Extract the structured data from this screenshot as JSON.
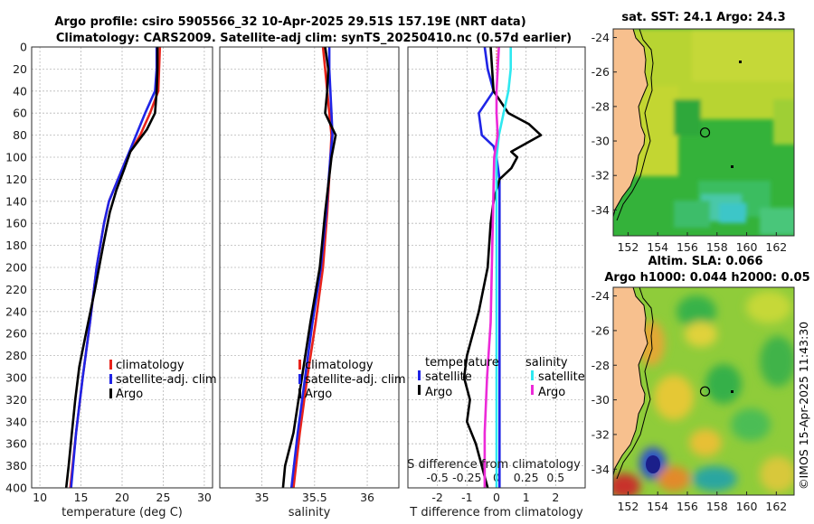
{
  "titles": {
    "line1": "Argo profile: csiro 5905566_32 10-Apr-2025 29.51S 157.19E (NRT data)",
    "line2": "Climatology: CARS2009. Satellite-adj clim: synTS_20250410.nc (0.57d earlier)"
  },
  "colors": {
    "climatology": "#e8231b",
    "satellite": "#1f24e6",
    "argo": "#000000",
    "sal_satellite": "#2ee8f0",
    "sal_argo": "#ec2ad8",
    "grid": "#b8b8b8",
    "land": "#f7c08e"
  },
  "stamp": "©IMOS 15-Apr-2025 11:43:30",
  "chart_data": [
    {
      "type": "line",
      "name": "temperature-profile",
      "xlabel": "temperature (deg C)",
      "ylabel": "",
      "xlim": [
        9,
        31
      ],
      "ylim": [
        0,
        400
      ],
      "y_reversed": true,
      "xticks": [
        10,
        15,
        20,
        25,
        30
      ],
      "yticks": [
        0,
        20,
        40,
        60,
        80,
        100,
        120,
        140,
        160,
        180,
        200,
        220,
        240,
        260,
        280,
        300,
        320,
        340,
        360,
        380,
        400
      ],
      "grid": true,
      "legend": [
        "climatology",
        "satellite-adj. clim",
        "Argo"
      ],
      "legend_position": "bottom-right",
      "series": [
        {
          "name": "climatology",
          "color_key": "climatology",
          "depth": [
            0,
            20,
            40,
            60,
            80,
            100,
            120,
            140,
            160,
            200,
            250,
            300,
            350,
            400
          ],
          "values": [
            24.6,
            24.5,
            24.4,
            23.4,
            22.2,
            20.6,
            19.5,
            18.4,
            17.8,
            16.9,
            16.1,
            15.2,
            14.4,
            13.7
          ]
        },
        {
          "name": "satellite-adj. clim",
          "color_key": "satellite",
          "depth": [
            0,
            20,
            40,
            60,
            80,
            100,
            120,
            140,
            160,
            200,
            250,
            300,
            350,
            400
          ],
          "values": [
            24.2,
            24.2,
            24.0,
            22.8,
            21.7,
            20.6,
            19.5,
            18.4,
            17.8,
            16.9,
            16.1,
            15.2,
            14.4,
            13.8
          ]
        },
        {
          "name": "Argo",
          "color_key": "argo",
          "depth": [
            0,
            20,
            40,
            60,
            75,
            85,
            95,
            110,
            130,
            150,
            180,
            220,
            260,
            290,
            320,
            350,
            380,
            400
          ],
          "values": [
            24.3,
            24.3,
            24.2,
            24.0,
            23.0,
            22.0,
            21.0,
            20.3,
            19.3,
            18.5,
            17.7,
            16.7,
            15.6,
            14.8,
            14.3,
            13.9,
            13.5,
            13.2
          ]
        }
      ]
    },
    {
      "type": "line",
      "name": "salinity-profile",
      "xlabel": "salinity",
      "ylabel": "",
      "xlim": [
        34.6,
        36.3
      ],
      "ylim": [
        0,
        400
      ],
      "y_reversed": true,
      "xticks": [
        35,
        35.5,
        36
      ],
      "grid": true,
      "legend": [
        "climatology",
        "satellite-adj. clim",
        "Argo"
      ],
      "legend_position": "bottom-right",
      "series": [
        {
          "name": "climatology",
          "color_key": "climatology",
          "depth": [
            0,
            20,
            40,
            60,
            80,
            100,
            150,
            200,
            250,
            300,
            350,
            400
          ],
          "values": [
            35.58,
            35.6,
            35.62,
            35.64,
            35.66,
            35.65,
            35.62,
            35.58,
            35.51,
            35.43,
            35.36,
            35.3
          ]
        },
        {
          "name": "satellite-adj. clim",
          "color_key": "satellite",
          "depth": [
            0,
            20,
            40,
            60,
            80,
            100,
            150,
            200,
            250,
            300,
            350,
            400
          ],
          "values": [
            35.64,
            35.64,
            35.65,
            35.66,
            35.67,
            35.65,
            35.61,
            35.56,
            35.48,
            35.41,
            35.34,
            35.28
          ]
        },
        {
          "name": "Argo",
          "color_key": "argo",
          "depth": [
            0,
            20,
            40,
            60,
            80,
            100,
            150,
            200,
            250,
            300,
            350,
            380,
            400
          ],
          "values": [
            35.6,
            35.63,
            35.62,
            35.6,
            35.7,
            35.66,
            35.6,
            35.55,
            35.46,
            35.38,
            35.3,
            35.22,
            35.2
          ]
        }
      ]
    },
    {
      "type": "line",
      "name": "difference-profile",
      "xlabel": "T difference from climatology",
      "xlabel_top": "S difference from climatology",
      "xlim": [
        -3,
        3
      ],
      "xlim_salinity": [
        -0.75,
        0.75
      ],
      "ylim": [
        0,
        400
      ],
      "y_reversed": true,
      "xticks": [
        -2,
        -1,
        0,
        1,
        2
      ],
      "xticks_salinity": [
        "-0.5",
        "-0.25",
        "0",
        "0.25",
        "0.5"
      ],
      "grid": true,
      "legend_temperature": {
        "title": "temperature",
        "entries": [
          "satellite",
          "Argo"
        ]
      },
      "legend_salinity": {
        "title": "salinity",
        "entries": [
          "satellite",
          "Argo"
        ]
      },
      "series": [
        {
          "name": "temperature satellite",
          "color_key": "satellite",
          "depth": [
            0,
            20,
            40,
            60,
            80,
            90,
            100,
            120,
            150,
            200,
            250,
            300,
            350,
            400
          ],
          "values": [
            -0.4,
            -0.3,
            -0.1,
            -0.6,
            -0.5,
            -0.1,
            0.0,
            0.1,
            0.1,
            0.1,
            0.1,
            0.1,
            0.1,
            0.1
          ]
        },
        {
          "name": "temperature Argo",
          "color_key": "argo",
          "depth": [
            0,
            40,
            60,
            70,
            80,
            95,
            100,
            110,
            120,
            140,
            160,
            200,
            240,
            260,
            280,
            300,
            320,
            340,
            360,
            380,
            400
          ],
          "values": [
            -0.2,
            -0.1,
            0.4,
            1.1,
            1.5,
            0.5,
            0.7,
            0.5,
            0.1,
            -0.1,
            -0.2,
            -0.3,
            -0.6,
            -0.8,
            -1.0,
            -1.1,
            -0.9,
            -1.0,
            -0.7,
            -0.5,
            -0.3
          ]
        },
        {
          "name": "salinity satellite",
          "color_key": "sal_satellite",
          "depth": [
            0,
            20,
            40,
            60,
            80,
            100,
            150,
            200,
            300,
            400
          ],
          "values": [
            0.12,
            0.12,
            0.1,
            0.06,
            0.02,
            0.0,
            0.0,
            0.0,
            0.0,
            0.0
          ]
        },
        {
          "name": "salinity Argo",
          "color_key": "sal_argo",
          "depth": [
            0,
            40,
            60,
            80,
            100,
            150,
            200,
            250,
            300,
            350,
            400
          ],
          "values": [
            0.02,
            0.0,
            0.0,
            0.01,
            -0.02,
            -0.03,
            -0.04,
            -0.05,
            -0.08,
            -0.1,
            -0.1
          ]
        }
      ]
    },
    {
      "type": "heatmap",
      "name": "sst-map",
      "title": "sat. SST: 24.1 Argo: 24.3",
      "xticks": [
        152,
        154,
        156,
        158,
        160,
        162
      ],
      "yticks": [
        -24,
        -26,
        -28,
        -30,
        -32,
        -34
      ],
      "xlim": [
        151,
        163.2
      ],
      "ylim": [
        -35.5,
        -23.5
      ],
      "marker": {
        "lon": 157.19,
        "lat": -29.51
      }
    },
    {
      "type": "heatmap",
      "name": "sla-map",
      "title": "Altim. SLA: 0.066",
      "subtitle": "Argo h1000: 0.044 h2000: 0.05",
      "xticks": [
        152,
        154,
        156,
        158,
        160,
        162
      ],
      "yticks": [
        -24,
        -26,
        -28,
        -30,
        -32,
        -34
      ],
      "xlim": [
        151,
        163.2
      ],
      "ylim": [
        -35.5,
        -23.5
      ],
      "marker": {
        "lon": 157.19,
        "lat": -29.51
      }
    }
  ]
}
